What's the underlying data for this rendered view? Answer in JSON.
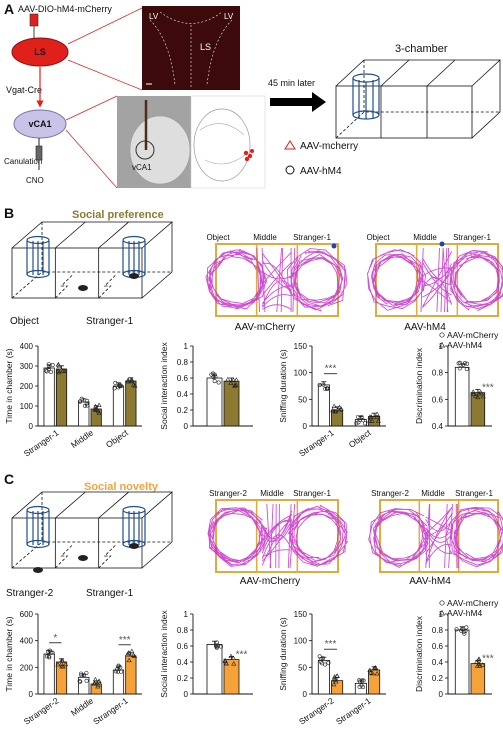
{
  "panel_a": {
    "letter": "A",
    "virus_label": "AAV-DIO-hM4-mCherry",
    "ls_label": "LS",
    "vgat_label": "Vgat-Cre",
    "vca1_label": "vCA1",
    "cannulation_label": "Canulation",
    "cno_label": "CNO",
    "histo_lv_left": "LV",
    "histo_lv_right": "LV",
    "histo_ls": "LS",
    "slice_vca1": "vCA1",
    "arrow_label": "45 min later",
    "chamber_title": "3-chamber",
    "legend_mcherry": "AAV-mcherry",
    "legend_hm4": "AAV-hM4",
    "color_red": "#e0201b"
  },
  "panel_b": {
    "letter": "B",
    "title": "Social preference",
    "title_color": "#8c7a33",
    "left_label": "Object",
    "right_label": "Stranger-1",
    "track_mcherry": {
      "caption": "AAV-mCherry",
      "labels": [
        "Object",
        "Middle",
        "Stranger-1"
      ]
    },
    "track_hm4": {
      "caption": "AAV-hM4",
      "labels": [
        "Object",
        "Middle",
        "Stranger-1"
      ]
    },
    "fill_color": "#8c7a33"
  },
  "panel_c": {
    "letter": "C",
    "title": "Social novelty",
    "title_color": "#f5a23a",
    "left_label": "Stranger-2",
    "right_label": "Stranger-1",
    "track_mcherry": {
      "caption": "AAV-mCherry",
      "labels": [
        "Stranger-2",
        "Middle",
        "Stranger-1"
      ]
    },
    "track_hm4": {
      "caption": "AAV-hM4",
      "labels": [
        "Stranger-2",
        "Middle",
        "Stranger-1"
      ]
    },
    "fill_color": "#f5a23a"
  },
  "chart_data": [
    {
      "id": "b1",
      "type": "bar",
      "ylabel": "Time in chamber (s)",
      "ylim": [
        0,
        400
      ],
      "yticks": [
        0,
        100,
        200,
        300,
        400
      ],
      "categories": [
        "Stranger-1",
        "Middle",
        "Object"
      ],
      "series": [
        {
          "values": [
            290,
            120,
            200
          ]
        },
        {
          "values": [
            285,
            85,
            225
          ]
        }
      ],
      "sig": []
    },
    {
      "id": "b2",
      "type": "bar",
      "ylabel": "Social interaction index",
      "ylim": [
        0,
        1.0
      ],
      "yticks": [
        0,
        0.2,
        0.4,
        0.6,
        0.8,
        1.0
      ],
      "categories": [
        ""
      ],
      "series": [
        {
          "values": [
            0.6
          ]
        },
        {
          "values": [
            0.56
          ]
        }
      ],
      "sig": []
    },
    {
      "id": "b3",
      "type": "bar",
      "ylabel": "Sniffing duration (s)",
      "ylim": [
        0,
        150
      ],
      "yticks": [
        0,
        50,
        100,
        150
      ],
      "categories": [
        "Stranger-1",
        "Object"
      ],
      "series": [
        {
          "values": [
            77,
            12
          ]
        },
        {
          "values": [
            30,
            18
          ]
        }
      ],
      "sig": [
        {
          "text": "***",
          "group": 0
        }
      ]
    },
    {
      "id": "b4",
      "type": "bar",
      "ylabel": "Discrimination index",
      "ylim": [
        0.4,
        1.0
      ],
      "yticks": [
        0.4,
        0.6,
        0.8,
        1.0
      ],
      "categories": [
        ""
      ],
      "series": [
        {
          "name": "AAV-mCherry",
          "values": [
            0.84
          ]
        },
        {
          "name": "AAV-hM4",
          "values": [
            0.65
          ]
        }
      ],
      "sig": [
        {
          "text": "***",
          "group": 0,
          "bar": 1
        }
      ]
    },
    {
      "id": "c1",
      "type": "bar",
      "ylabel": "Time in chamber (s)",
      "ylim": [
        0,
        600
      ],
      "yticks": [
        0,
        200,
        400,
        600
      ],
      "categories": [
        "Stranger-2",
        "Middle",
        "Stranger-1"
      ],
      "series": [
        {
          "values": [
            300,
            125,
            180
          ]
        },
        {
          "values": [
            240,
            75,
            285
          ]
        }
      ],
      "sig": [
        {
          "text": "*",
          "group": 0
        },
        {
          "text": "***",
          "group": 2
        }
      ]
    },
    {
      "id": "c2",
      "type": "bar",
      "ylabel": "Social interaction index",
      "ylim": [
        0,
        1.0
      ],
      "yticks": [
        0,
        0.2,
        0.4,
        0.6,
        0.8,
        1.0
      ],
      "categories": [
        ""
      ],
      "series": [
        {
          "values": [
            0.62
          ]
        },
        {
          "values": [
            0.43
          ]
        }
      ],
      "sig": [
        {
          "text": "***",
          "group": 0,
          "bar": 1
        }
      ]
    },
    {
      "id": "c3",
      "type": "bar",
      "ylabel": "Sniffing duration (s)",
      "ylim": [
        0,
        150
      ],
      "yticks": [
        0,
        50,
        100,
        150
      ],
      "categories": [
        "Stranger-2",
        "Stranger-1"
      ],
      "series": [
        {
          "values": [
            63,
            20
          ]
        },
        {
          "values": [
            25,
            45
          ]
        }
      ],
      "sig": [
        {
          "text": "***",
          "group": 0
        }
      ]
    },
    {
      "id": "c4",
      "type": "bar",
      "ylabel": "Discrimination index",
      "ylim": [
        0,
        1.0
      ],
      "yticks": [
        0,
        0.2,
        0.4,
        0.6,
        0.8,
        1.0
      ],
      "categories": [
        ""
      ],
      "series": [
        {
          "name": "AAV-mCherry",
          "values": [
            0.8
          ]
        },
        {
          "name": "AAV-hM4",
          "values": [
            0.38
          ]
        }
      ],
      "sig": [
        {
          "text": "***",
          "group": 0,
          "bar": 1
        }
      ]
    }
  ]
}
